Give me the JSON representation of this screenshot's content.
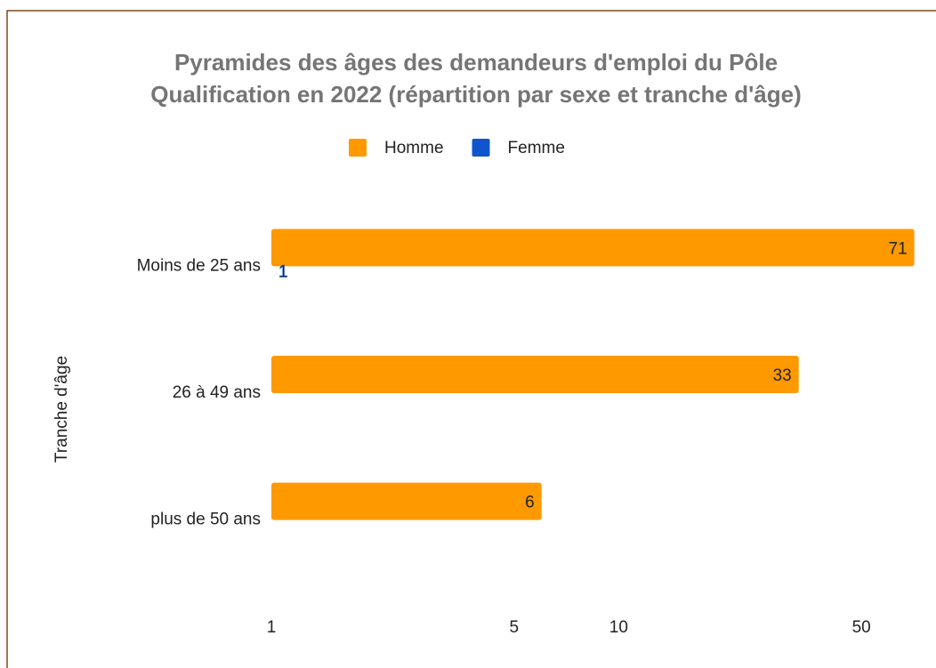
{
  "chart_data": {
    "type": "bar",
    "orientation": "horizontal",
    "title": [
      "Pyramides des âges des demandeurs d'emploi du Pôle",
      "Qualification en 2022 (répartition par sexe et tranche d'âge)"
    ],
    "ylabel": "Tranche d'âge",
    "categories": [
      "Moins de 25 ans",
      "26 à 49 ans",
      "plus de 50 ans"
    ],
    "series": [
      {
        "name": "Homme",
        "color": "#ff9900",
        "values": [
          71,
          33,
          6
        ]
      },
      {
        "name": "Femme",
        "color": "#1155cc",
        "values": [
          1,
          null,
          null
        ]
      }
    ],
    "xscale": "log",
    "xlim": [
      1,
      72
    ],
    "xticks": [
      1,
      5,
      10,
      50
    ],
    "grid": false,
    "legend": "top"
  }
}
